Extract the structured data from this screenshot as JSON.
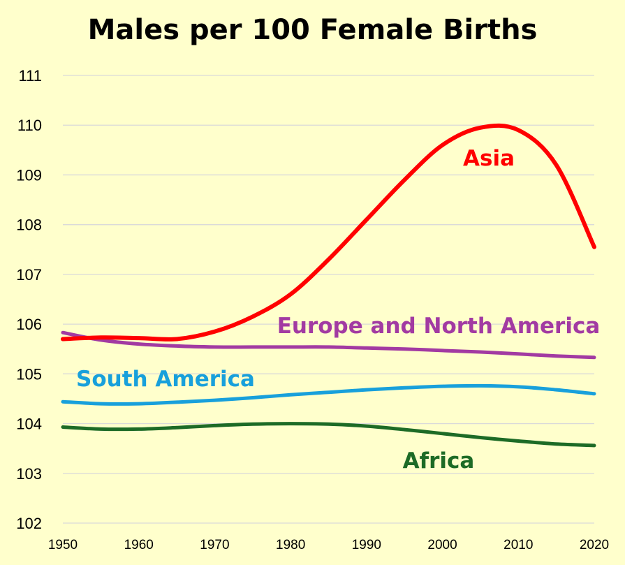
{
  "chart_data": {
    "type": "line",
    "title": "Males per 100 Female Births",
    "xlabel": "",
    "ylabel": "",
    "xlim": [
      1950,
      2020
    ],
    "ylim": [
      102,
      111
    ],
    "x_ticks": [
      1950,
      1960,
      1970,
      1980,
      1990,
      2000,
      2010,
      2020
    ],
    "y_ticks": [
      102,
      103,
      104,
      105,
      106,
      107,
      108,
      109,
      110,
      111
    ],
    "grid": "horizontal",
    "legend": "inline labels",
    "x": [
      1950,
      1955,
      1960,
      1965,
      1970,
      1975,
      1980,
      1985,
      1990,
      1995,
      2000,
      2005,
      2010,
      2015,
      2020
    ],
    "series": [
      {
        "name": "Asia",
        "color": "#FF0000",
        "values": [
          105.7,
          105.73,
          105.72,
          105.7,
          105.85,
          106.15,
          106.6,
          107.3,
          108.1,
          108.9,
          109.6,
          109.95,
          109.9,
          109.2,
          107.55
        ]
      },
      {
        "name": "Europe and North America",
        "color": "#A23AA2",
        "values": [
          105.83,
          105.68,
          105.6,
          105.56,
          105.54,
          105.54,
          105.54,
          105.54,
          105.52,
          105.5,
          105.47,
          105.44,
          105.4,
          105.36,
          105.33
        ]
      },
      {
        "name": "South America",
        "color": "#18A0DB",
        "values": [
          104.44,
          104.4,
          104.4,
          104.43,
          104.47,
          104.52,
          104.58,
          104.63,
          104.68,
          104.72,
          104.75,
          104.76,
          104.74,
          104.68,
          104.6
        ]
      },
      {
        "name": "Africa",
        "color": "#1D6B26",
        "values": [
          103.93,
          103.89,
          103.89,
          103.92,
          103.96,
          103.99,
          104.0,
          103.99,
          103.95,
          103.88,
          103.8,
          103.72,
          103.65,
          103.59,
          103.56
        ]
      }
    ]
  }
}
